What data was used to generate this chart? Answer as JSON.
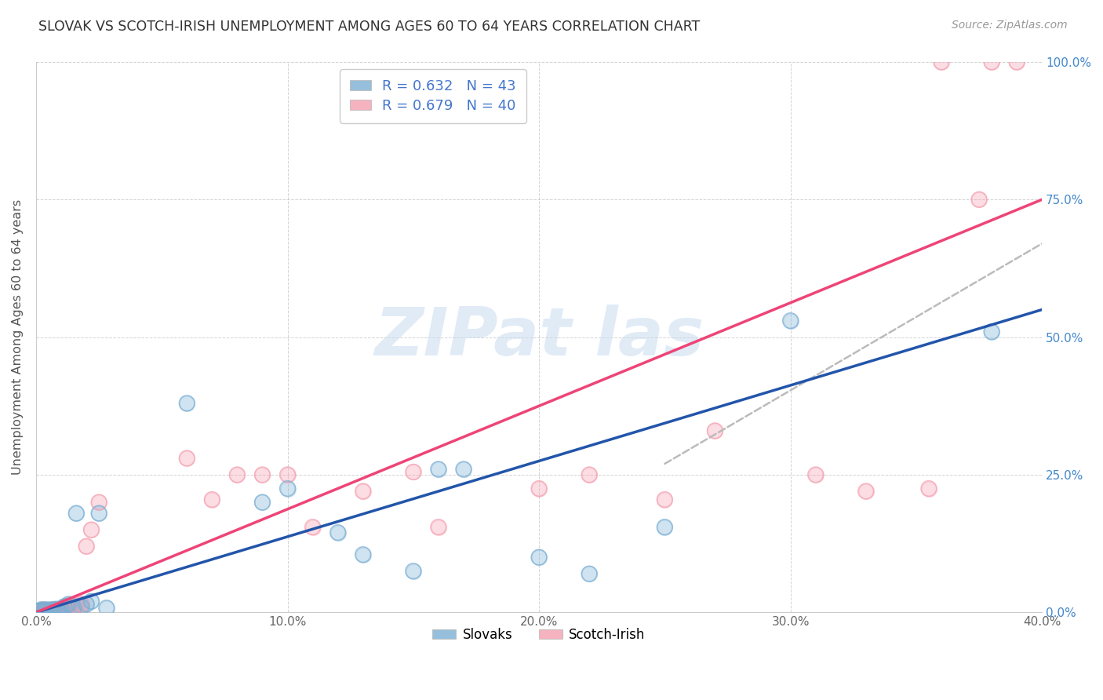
{
  "title": "SLOVAK VS SCOTCH-IRISH UNEMPLOYMENT AMONG AGES 60 TO 64 YEARS CORRELATION CHART",
  "source": "Source: ZipAtlas.com",
  "ylabel": "Unemployment Among Ages 60 to 64 years",
  "xlim": [
    0.0,
    0.4
  ],
  "ylim": [
    0.0,
    1.0
  ],
  "xticks": [
    0.0,
    0.1,
    0.2,
    0.3,
    0.4
  ],
  "yticks": [
    0.0,
    0.25,
    0.5,
    0.75,
    1.0
  ],
  "xtick_labels": [
    "0.0%",
    "10.0%",
    "20.0%",
    "30.0%",
    "40.0%"
  ],
  "ytick_labels_right": [
    "0.0%",
    "25.0%",
    "50.0%",
    "75.0%",
    "100.0%"
  ],
  "legend_slovak_R": "R = 0.632",
  "legend_slovak_N": "N = 43",
  "legend_scotch_R": "R = 0.679",
  "legend_scotch_N": "N = 40",
  "slovak_color": "#7BAFD4",
  "scotch_color": "#F4A0B0",
  "slovak_line_color": "#2255AA",
  "scotch_line_color": "#EE4477",
  "background_color": "#FFFFFF",
  "grid_color": "#CCCCCC",
  "slovak_line_x0": 0.0,
  "slovak_line_y0": 0.0,
  "slovak_line_x1": 0.4,
  "slovak_line_y1": 0.55,
  "scotch_line_x0": 0.0,
  "scotch_line_y0": 0.0,
  "scotch_line_x1": 0.4,
  "scotch_line_y1": 0.75,
  "dash_line_x0": 0.25,
  "dash_line_y0": 0.27,
  "dash_line_x1": 0.4,
  "dash_line_y1": 0.67,
  "slovak_scatter_x": [
    0.0,
    0.001,
    0.002,
    0.002,
    0.003,
    0.003,
    0.004,
    0.004,
    0.005,
    0.005,
    0.006,
    0.006,
    0.007,
    0.007,
    0.008,
    0.008,
    0.009,
    0.009,
    0.01,
    0.01,
    0.011,
    0.012,
    0.013,
    0.015,
    0.016,
    0.018,
    0.02,
    0.022,
    0.025,
    0.028,
    0.06,
    0.09,
    0.1,
    0.12,
    0.13,
    0.15,
    0.16,
    0.17,
    0.2,
    0.22,
    0.25,
    0.3,
    0.38
  ],
  "slovak_scatter_y": [
    0.0,
    0.002,
    0.003,
    0.005,
    0.002,
    0.004,
    0.003,
    0.005,
    0.002,
    0.004,
    0.003,
    0.005,
    0.003,
    0.005,
    0.004,
    0.006,
    0.003,
    0.005,
    0.004,
    0.006,
    0.01,
    0.012,
    0.015,
    0.008,
    0.18,
    0.01,
    0.015,
    0.02,
    0.18,
    0.008,
    0.38,
    0.2,
    0.225,
    0.145,
    0.105,
    0.075,
    0.26,
    0.26,
    0.1,
    0.07,
    0.155,
    0.53,
    0.51
  ],
  "scotch_scatter_x": [
    0.0,
    0.001,
    0.002,
    0.003,
    0.004,
    0.005,
    0.006,
    0.007,
    0.008,
    0.009,
    0.01,
    0.011,
    0.012,
    0.013,
    0.015,
    0.016,
    0.018,
    0.02,
    0.022,
    0.025,
    0.06,
    0.07,
    0.08,
    0.09,
    0.1,
    0.11,
    0.13,
    0.15,
    0.16,
    0.2,
    0.22,
    0.25,
    0.27,
    0.31,
    0.33,
    0.355,
    0.36,
    0.375,
    0.38,
    0.39
  ],
  "scotch_scatter_y": [
    0.0,
    0.002,
    0.003,
    0.005,
    0.003,
    0.004,
    0.003,
    0.005,
    0.004,
    0.005,
    0.003,
    0.005,
    0.008,
    0.01,
    0.008,
    0.012,
    0.015,
    0.12,
    0.15,
    0.2,
    0.28,
    0.205,
    0.25,
    0.25,
    0.25,
    0.155,
    0.22,
    0.255,
    0.155,
    0.225,
    0.25,
    0.205,
    0.33,
    0.25,
    0.22,
    0.225,
    1.0,
    0.75,
    1.0,
    1.0
  ],
  "watermark": "ZIPat las",
  "legend_bottom": [
    "Slovaks",
    "Scotch-Irish"
  ]
}
